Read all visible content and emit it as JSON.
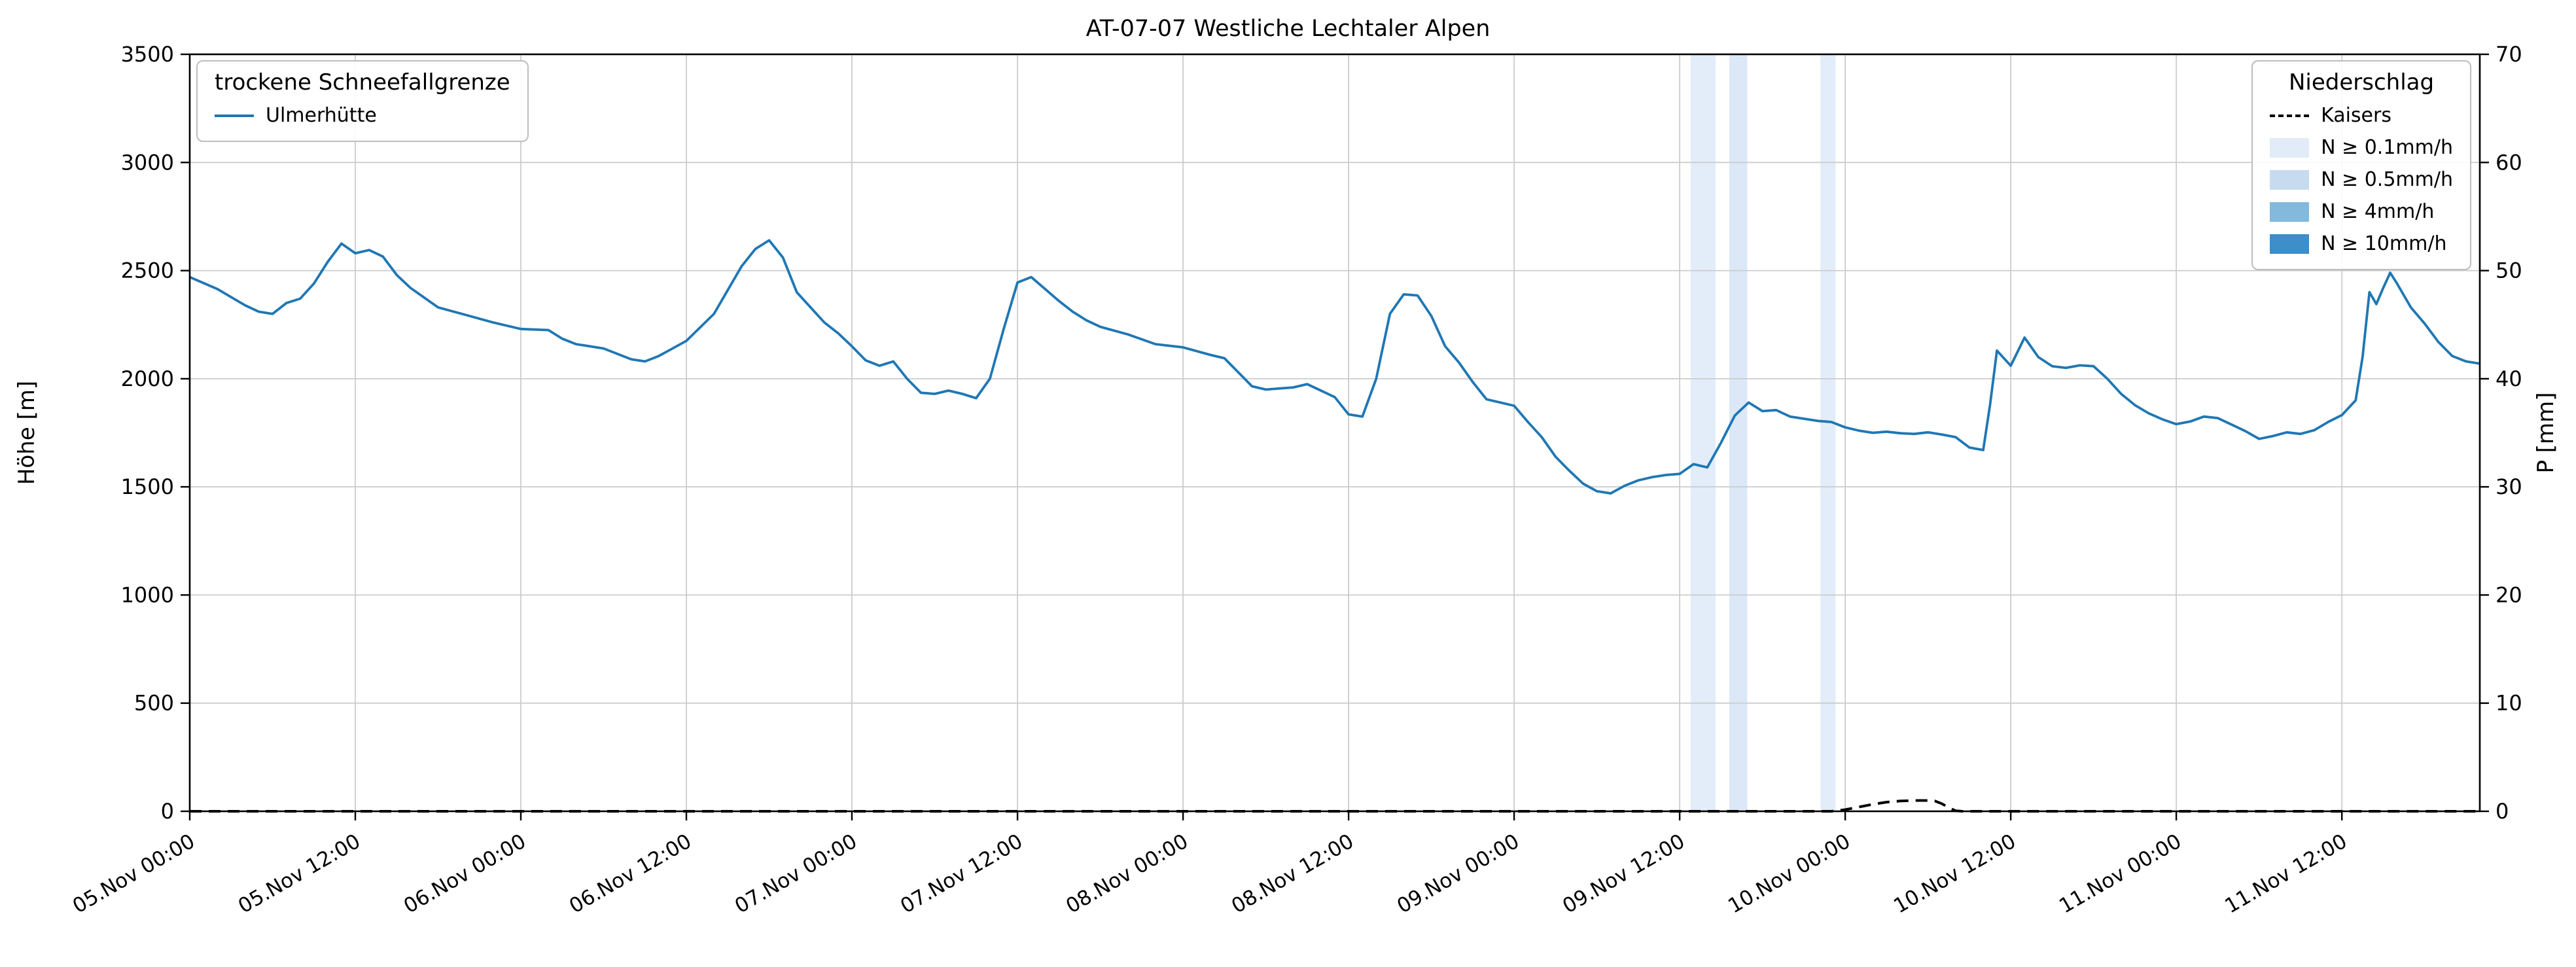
{
  "title": "AT-07-07 Westliche Lechtaler Alpen",
  "legend_left": {
    "title": "trockene Schneefallgrenze",
    "items": [
      {
        "label": "Ulmerhütte",
        "type": "line",
        "color": "#1f77b4"
      }
    ]
  },
  "legend_right": {
    "title": "Niederschlag",
    "items": [
      {
        "label": "Kaisers",
        "type": "dashed-line",
        "color": "#000000"
      },
      {
        "label": "N ≥ 0.1mm/h",
        "type": "patch",
        "color": "#e1ecf8"
      },
      {
        "label": "N ≥ 0.5mm/h",
        "type": "patch",
        "color": "#c6dbef"
      },
      {
        "label": "N ≥ 4mm/h",
        "type": "patch",
        "color": "#82b9dc"
      },
      {
        "label": "N ≥ 10mm/h",
        "type": "patch",
        "color": "#3d8ec9"
      }
    ]
  },
  "chart_data": {
    "type": "line",
    "title": "AT-07-07 Westliche Lechtaler Alpen",
    "grid": true,
    "x": {
      "unit": "hours since 05.Nov 00:00",
      "min": 0,
      "max": 166,
      "tick_hours": [
        0,
        12,
        24,
        36,
        48,
        60,
        72,
        84,
        96,
        108,
        120,
        132,
        144,
        156
      ],
      "tick_labels": [
        "05.Nov 00:00",
        "05.Nov 12:00",
        "06.Nov 00:00",
        "06.Nov 12:00",
        "07.Nov 00:00",
        "07.Nov 12:00",
        "08.Nov 00:00",
        "08.Nov 12:00",
        "09.Nov 00:00",
        "09.Nov 12:00",
        "10.Nov 00:00",
        "10.Nov 12:00",
        "11.Nov 00:00",
        "11.Nov 12:00"
      ]
    },
    "y_left": {
      "label": "Höhe [m]",
      "min": 0,
      "max": 3500,
      "ticks": [
        0,
        500,
        1000,
        1500,
        2000,
        2500,
        3000,
        3500
      ]
    },
    "y_right": {
      "label": "P [mm]",
      "min": 0,
      "max": 70,
      "ticks": [
        0,
        10,
        20,
        30,
        40,
        50,
        60,
        70
      ]
    },
    "series": [
      {
        "name": "Ulmerhütte",
        "axis": "left",
        "style": "solid",
        "color": "#1f77b4",
        "points": [
          [
            0,
            2470
          ],
          [
            2,
            2415
          ],
          [
            4,
            2340
          ],
          [
            5,
            2310
          ],
          [
            6,
            2300
          ],
          [
            7,
            2350
          ],
          [
            8,
            2370
          ],
          [
            9,
            2440
          ],
          [
            10,
            2540
          ],
          [
            11,
            2625
          ],
          [
            12,
            2580
          ],
          [
            13,
            2595
          ],
          [
            14,
            2565
          ],
          [
            15,
            2480
          ],
          [
            16,
            2420
          ],
          [
            18,
            2330
          ],
          [
            20,
            2295
          ],
          [
            22,
            2260
          ],
          [
            24,
            2230
          ],
          [
            26,
            2225
          ],
          [
            27,
            2185
          ],
          [
            28,
            2160
          ],
          [
            30,
            2140
          ],
          [
            32,
            2090
          ],
          [
            33,
            2080
          ],
          [
            34,
            2105
          ],
          [
            36,
            2175
          ],
          [
            38,
            2300
          ],
          [
            40,
            2520
          ],
          [
            41,
            2600
          ],
          [
            42,
            2640
          ],
          [
            43,
            2560
          ],
          [
            44,
            2400
          ],
          [
            45,
            2330
          ],
          [
            46,
            2260
          ],
          [
            47,
            2210
          ],
          [
            48,
            2150
          ],
          [
            49,
            2085
          ],
          [
            50,
            2060
          ],
          [
            51,
            2080
          ],
          [
            52,
            2000
          ],
          [
            53,
            1935
          ],
          [
            54,
            1930
          ],
          [
            55,
            1945
          ],
          [
            56,
            1930
          ],
          [
            57,
            1910
          ],
          [
            58,
            2000
          ],
          [
            59,
            2230
          ],
          [
            60,
            2445
          ],
          [
            61,
            2470
          ],
          [
            62,
            2415
          ],
          [
            63,
            2360
          ],
          [
            64,
            2310
          ],
          [
            65,
            2270
          ],
          [
            66,
            2240
          ],
          [
            68,
            2205
          ],
          [
            70,
            2160
          ],
          [
            72,
            2145
          ],
          [
            74,
            2110
          ],
          [
            75,
            2095
          ],
          [
            76,
            2030
          ],
          [
            77,
            1965
          ],
          [
            78,
            1950
          ],
          [
            80,
            1960
          ],
          [
            81,
            1975
          ],
          [
            82,
            1945
          ],
          [
            83,
            1915
          ],
          [
            84,
            1835
          ],
          [
            85,
            1825
          ],
          [
            86,
            2000
          ],
          [
            87,
            2300
          ],
          [
            88,
            2390
          ],
          [
            89,
            2385
          ],
          [
            90,
            2290
          ],
          [
            91,
            2150
          ],
          [
            92,
            2075
          ],
          [
            93,
            1985
          ],
          [
            94,
            1905
          ],
          [
            95,
            1890
          ],
          [
            96,
            1875
          ],
          [
            97,
            1800
          ],
          [
            98,
            1730
          ],
          [
            99,
            1640
          ],
          [
            100,
            1575
          ],
          [
            101,
            1515
          ],
          [
            102,
            1480
          ],
          [
            103,
            1470
          ],
          [
            104,
            1505
          ],
          [
            105,
            1530
          ],
          [
            106,
            1545
          ],
          [
            107,
            1555
          ],
          [
            108,
            1560
          ],
          [
            109,
            1605
          ],
          [
            110,
            1590
          ],
          [
            111,
            1705
          ],
          [
            112,
            1830
          ],
          [
            113,
            1890
          ],
          [
            114,
            1850
          ],
          [
            115,
            1855
          ],
          [
            116,
            1825
          ],
          [
            117,
            1815
          ],
          [
            118,
            1805
          ],
          [
            119,
            1800
          ],
          [
            120,
            1775
          ],
          [
            121,
            1760
          ],
          [
            122,
            1750
          ],
          [
            123,
            1755
          ],
          [
            124,
            1748
          ],
          [
            125,
            1745
          ],
          [
            126,
            1752
          ],
          [
            127,
            1742
          ],
          [
            128,
            1730
          ],
          [
            129,
            1682
          ],
          [
            130,
            1670
          ],
          [
            130.5,
            1880
          ],
          [
            131,
            2130
          ],
          [
            132,
            2060
          ],
          [
            133,
            2190
          ],
          [
            134,
            2100
          ],
          [
            135,
            2058
          ],
          [
            136,
            2050
          ],
          [
            137,
            2062
          ],
          [
            138,
            2058
          ],
          [
            139,
            2000
          ],
          [
            140,
            1930
          ],
          [
            141,
            1878
          ],
          [
            142,
            1840
          ],
          [
            143,
            1812
          ],
          [
            144,
            1790
          ],
          [
            145,
            1802
          ],
          [
            146,
            1825
          ],
          [
            147,
            1818
          ],
          [
            148,
            1788
          ],
          [
            149,
            1758
          ],
          [
            150,
            1722
          ],
          [
            151,
            1735
          ],
          [
            152,
            1752
          ],
          [
            153,
            1745
          ],
          [
            154,
            1762
          ],
          [
            155,
            1800
          ],
          [
            156,
            1832
          ],
          [
            157,
            1900
          ],
          [
            157.5,
            2100
          ],
          [
            158,
            2400
          ],
          [
            158.5,
            2345
          ],
          [
            159,
            2420
          ],
          [
            159.5,
            2490
          ],
          [
            160,
            2440
          ],
          [
            161,
            2330
          ],
          [
            162,
            2255
          ],
          [
            163,
            2170
          ],
          [
            164,
            2105
          ],
          [
            165,
            2080
          ],
          [
            166,
            2070
          ]
        ]
      },
      {
        "name": "Kaisers",
        "axis": "right",
        "style": "dashed",
        "color": "#000000",
        "points": [
          [
            0,
            0
          ],
          [
            119,
            0
          ],
          [
            120,
            0.15
          ],
          [
            121,
            0.4
          ],
          [
            122,
            0.65
          ],
          [
            123,
            0.85
          ],
          [
            124,
            0.95
          ],
          [
            125,
            1.0
          ],
          [
            126,
            1.0
          ],
          [
            126.5,
            0.95
          ],
          [
            127,
            0.7
          ],
          [
            127.5,
            0.35
          ],
          [
            128,
            0.05
          ],
          [
            128.5,
            0
          ],
          [
            166,
            0
          ]
        ]
      }
    ],
    "bands": [
      {
        "start": 108.8,
        "end": 110.6,
        "label": "N ≥ 0.1mm/h",
        "color": "#e2edf9"
      },
      {
        "start": 111.6,
        "end": 112.9,
        "label": "N ≥ 0.1mm/h",
        "color": "#dce8f7"
      },
      {
        "start": 118.2,
        "end": 119.3,
        "label": "N ≥ 0.1mm/h",
        "color": "#e2edf9"
      }
    ]
  }
}
